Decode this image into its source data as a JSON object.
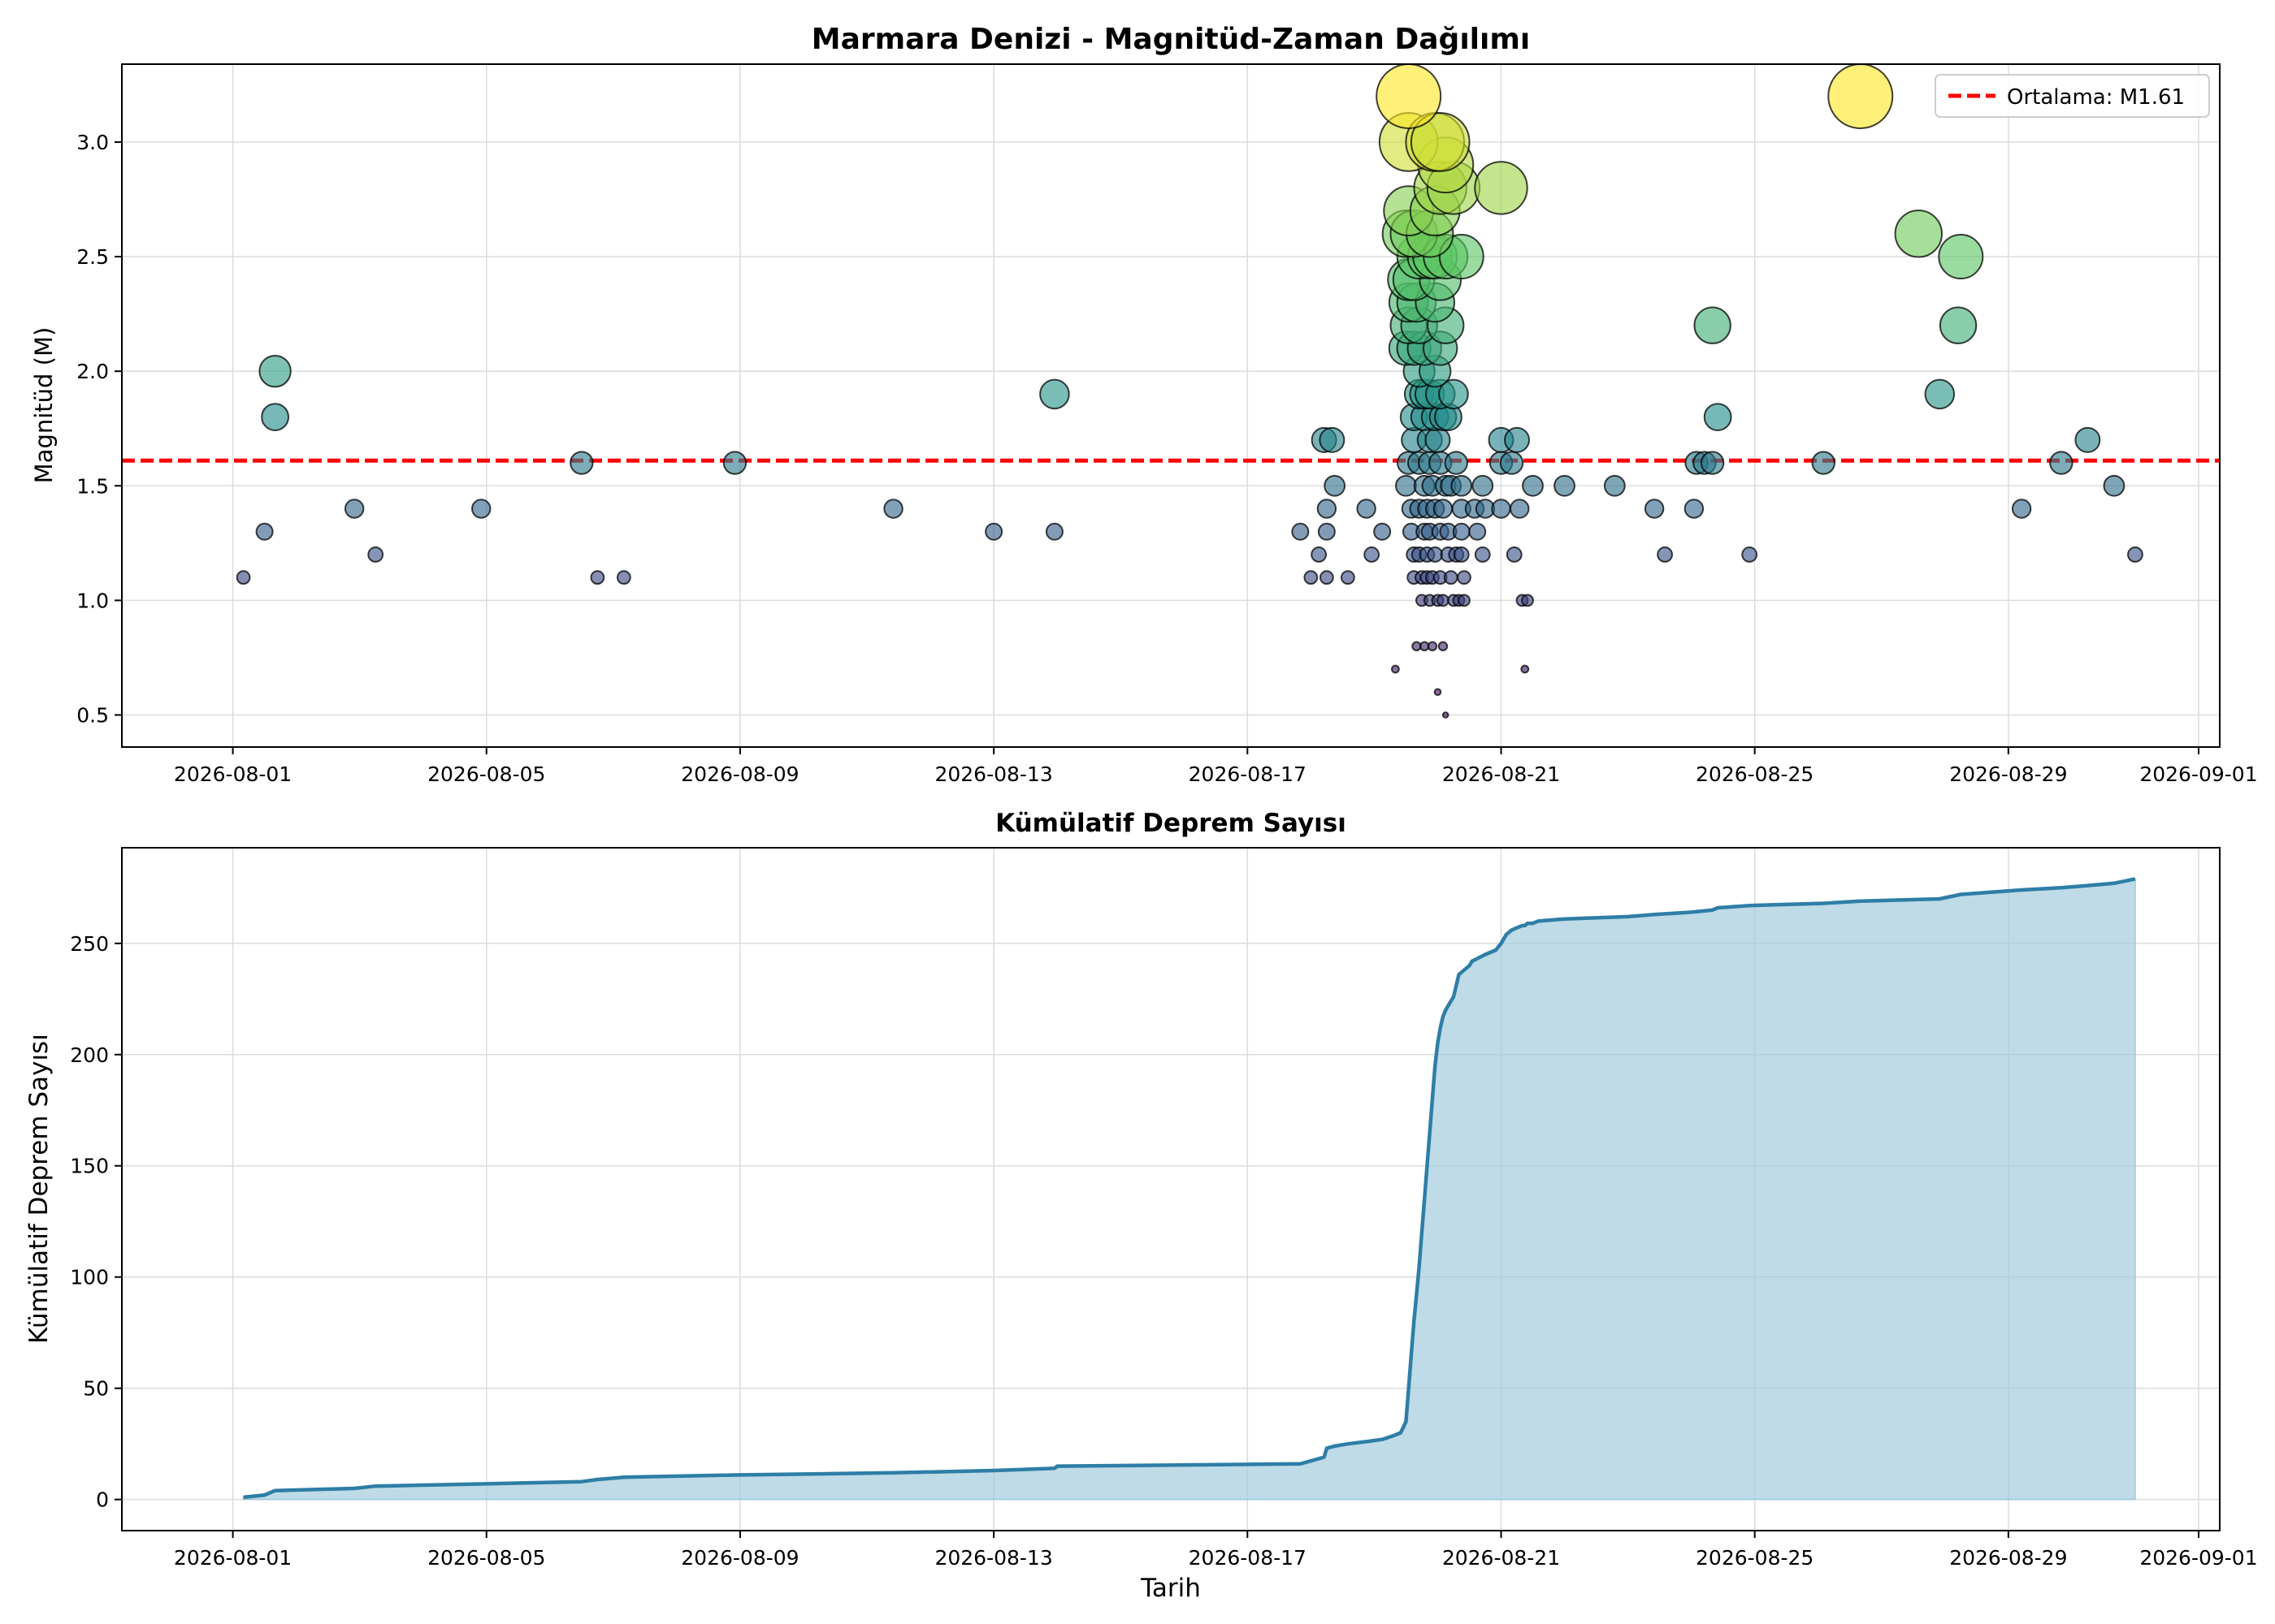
{
  "chart_data": [
    {
      "type": "scatter",
      "title": "Marmara Denizi - Magnitüd-Zaman Dağılımı",
      "xlabel": "",
      "ylabel": "Magnitüd (M)",
      "x_type": "date",
      "xlim": [
        "2026-07-30T06:00",
        "2026-09-01T08:00"
      ],
      "ylim": [
        0.36,
        3.34
      ],
      "x_ticks": [
        "2026-08-01",
        "2026-08-05",
        "2026-08-09",
        "2026-08-13",
        "2026-08-17",
        "2026-08-21",
        "2026-08-25",
        "2026-08-29",
        "2026-09-01"
      ],
      "y_ticks": [
        "0.5",
        "1.0",
        "1.5",
        "2.0",
        "2.5",
        "3.0"
      ],
      "grid": true,
      "colormap": "viridis",
      "color_range": [
        0.5,
        3.2
      ],
      "marker_size_by": "magnitude",
      "mean_line": {
        "value": 1.61,
        "color": "#ff0000",
        "style": "dashed"
      },
      "legend": {
        "position": "top-right",
        "entries": [
          {
            "label": "Ortalama: M1.61",
            "color": "#ff0000",
            "style": "dashed"
          }
        ]
      },
      "points": [
        {
          "x": "2026-08-01T04:00",
          "y": 1.1
        },
        {
          "x": "2026-08-01T12:00",
          "y": 1.3
        },
        {
          "x": "2026-08-01T16:00",
          "y": 2.0
        },
        {
          "x": "2026-08-01T16:00",
          "y": 1.8
        },
        {
          "x": "2026-08-02T22:00",
          "y": 1.4
        },
        {
          "x": "2026-08-03T06:00",
          "y": 1.2
        },
        {
          "x": "2026-08-04T22:00",
          "y": 1.4
        },
        {
          "x": "2026-08-06T12:00",
          "y": 1.6
        },
        {
          "x": "2026-08-06T18:00",
          "y": 1.1
        },
        {
          "x": "2026-08-07T04:00",
          "y": 1.1
        },
        {
          "x": "2026-08-08T22:00",
          "y": 1.6
        },
        {
          "x": "2026-08-11T10:00",
          "y": 1.4
        },
        {
          "x": "2026-08-13T00:00",
          "y": 1.3
        },
        {
          "x": "2026-08-13T23:00",
          "y": 1.9
        },
        {
          "x": "2026-08-13T23:00",
          "y": 1.3
        },
        {
          "x": "2026-08-17T20:00",
          "y": 1.3
        },
        {
          "x": "2026-08-18T00:00",
          "y": 1.1
        },
        {
          "x": "2026-08-18T03:00",
          "y": 1.2
        },
        {
          "x": "2026-08-18T05:00",
          "y": 1.7
        },
        {
          "x": "2026-08-18T06:00",
          "y": 1.4
        },
        {
          "x": "2026-08-18T06:00",
          "y": 1.3
        },
        {
          "x": "2026-08-18T06:00",
          "y": 1.1
        },
        {
          "x": "2026-08-18T08:00",
          "y": 1.7
        },
        {
          "x": "2026-08-18T09:00",
          "y": 1.5
        },
        {
          "x": "2026-08-18T14:00",
          "y": 1.1
        },
        {
          "x": "2026-08-18T21:00",
          "y": 1.4
        },
        {
          "x": "2026-08-18T23:00",
          "y": 1.2
        },
        {
          "x": "2026-08-19T03:00",
          "y": 1.3
        },
        {
          "x": "2026-08-19T08:00",
          "y": 0.7
        },
        {
          "x": "2026-08-19T13:00",
          "y": 3.2
        },
        {
          "x": "2026-08-19T13:00",
          "y": 3.0
        },
        {
          "x": "2026-08-19T13:00",
          "y": 2.7
        },
        {
          "x": "2026-08-19T12:00",
          "y": 2.6
        },
        {
          "x": "2026-08-19T13:00",
          "y": 2.4
        },
        {
          "x": "2026-08-19T12:00",
          "y": 2.1
        },
        {
          "x": "2026-08-19T13:00",
          "y": 2.2
        },
        {
          "x": "2026-08-19T13:00",
          "y": 2.3
        },
        {
          "x": "2026-08-19T13:00",
          "y": 1.6
        },
        {
          "x": "2026-08-19T12:00",
          "y": 1.5
        },
        {
          "x": "2026-08-19T14:00",
          "y": 1.4
        },
        {
          "x": "2026-08-19T14:00",
          "y": 1.3
        },
        {
          "x": "2026-08-19T15:00",
          "y": 2.6
        },
        {
          "x": "2026-08-19T15:00",
          "y": 2.4
        },
        {
          "x": "2026-08-19T16:00",
          "y": 2.3
        },
        {
          "x": "2026-08-19T15:00",
          "y": 2.1
        },
        {
          "x": "2026-08-19T15:00",
          "y": 1.8
        },
        {
          "x": "2026-08-19T15:00",
          "y": 1.7
        },
        {
          "x": "2026-08-19T15:00",
          "y": 1.2
        },
        {
          "x": "2026-08-19T15:00",
          "y": 1.1
        },
        {
          "x": "2026-08-19T16:00",
          "y": 0.8
        },
        {
          "x": "2026-08-19T17:00",
          "y": 2.5
        },
        {
          "x": "2026-08-19T17:00",
          "y": 2.2
        },
        {
          "x": "2026-08-19T17:00",
          "y": 2.0
        },
        {
          "x": "2026-08-19T17:00",
          "y": 1.9
        },
        {
          "x": "2026-08-19T17:00",
          "y": 1.6
        },
        {
          "x": "2026-08-19T17:00",
          "y": 1.4
        },
        {
          "x": "2026-08-19T17:00",
          "y": 1.2
        },
        {
          "x": "2026-08-19T18:00",
          "y": 1.0
        },
        {
          "x": "2026-08-19T18:00",
          "y": 1.1
        },
        {
          "x": "2026-08-19T19:00",
          "y": 2.1
        },
        {
          "x": "2026-08-19T19:00",
          "y": 1.9
        },
        {
          "x": "2026-08-19T19:00",
          "y": 1.8
        },
        {
          "x": "2026-08-19T19:00",
          "y": 1.5
        },
        {
          "x": "2026-08-19T19:00",
          "y": 1.3
        },
        {
          "x": "2026-08-19T19:00",
          "y": 0.8
        },
        {
          "x": "2026-08-19T20:00",
          "y": 1.2
        },
        {
          "x": "2026-08-19T20:00",
          "y": 1.4
        },
        {
          "x": "2026-08-19T20:00",
          "y": 1.1
        },
        {
          "x": "2026-08-19T21:00",
          "y": 2.6
        },
        {
          "x": "2026-08-19T21:00",
          "y": 2.5
        },
        {
          "x": "2026-08-19T21:00",
          "y": 1.9
        },
        {
          "x": "2026-08-19T21:00",
          "y": 1.7
        },
        {
          "x": "2026-08-19T21:00",
          "y": 1.6
        },
        {
          "x": "2026-08-19T21:00",
          "y": 1.3
        },
        {
          "x": "2026-08-19T21:00",
          "y": 1.0
        },
        {
          "x": "2026-08-19T22:00",
          "y": 0.8
        },
        {
          "x": "2026-08-19T22:00",
          "y": 1.1
        },
        {
          "x": "2026-08-19T22:00",
          "y": 1.5
        },
        {
          "x": "2026-08-19T23:00",
          "y": 3.0
        },
        {
          "x": "2026-08-19T23:00",
          "y": 2.7
        },
        {
          "x": "2026-08-19T23:00",
          "y": 2.5
        },
        {
          "x": "2026-08-19T23:00",
          "y": 2.3
        },
        {
          "x": "2026-08-19T23:00",
          "y": 2.0
        },
        {
          "x": "2026-08-19T23:00",
          "y": 1.8
        },
        {
          "x": "2026-08-19T23:00",
          "y": 1.4
        },
        {
          "x": "2026-08-19T23:00",
          "y": 1.2
        },
        {
          "x": "2026-08-20T00:00",
          "y": 0.6
        },
        {
          "x": "2026-08-20T00:00",
          "y": 1.0
        },
        {
          "x": "2026-08-20T00:00",
          "y": 1.7
        },
        {
          "x": "2026-08-20T01:00",
          "y": 3.0
        },
        {
          "x": "2026-08-20T01:00",
          "y": 2.8
        },
        {
          "x": "2026-08-20T01:00",
          "y": 2.4
        },
        {
          "x": "2026-08-20T01:00",
          "y": 2.1
        },
        {
          "x": "2026-08-20T01:00",
          "y": 1.9
        },
        {
          "x": "2026-08-20T01:00",
          "y": 1.6
        },
        {
          "x": "2026-08-20T01:00",
          "y": 1.3
        },
        {
          "x": "2026-08-20T01:00",
          "y": 1.1
        },
        {
          "x": "2026-08-20T02:00",
          "y": 0.8
        },
        {
          "x": "2026-08-20T02:00",
          "y": 1.0
        },
        {
          "x": "2026-08-20T02:00",
          "y": 1.4
        },
        {
          "x": "2026-08-20T02:00",
          "y": 1.8
        },
        {
          "x": "2026-08-20T03:00",
          "y": 2.9
        },
        {
          "x": "2026-08-20T03:00",
          "y": 2.5
        },
        {
          "x": "2026-08-20T03:00",
          "y": 2.2
        },
        {
          "x": "2026-08-20T03:00",
          "y": 1.5
        },
        {
          "x": "2026-08-20T03:00",
          "y": 0.5
        },
        {
          "x": "2026-08-20T04:00",
          "y": 1.8
        },
        {
          "x": "2026-08-20T04:00",
          "y": 1.3
        },
        {
          "x": "2026-08-20T04:00",
          "y": 1.2
        },
        {
          "x": "2026-08-20T05:00",
          "y": 1.1
        },
        {
          "x": "2026-08-20T05:00",
          "y": 1.5
        },
        {
          "x": "2026-08-20T06:00",
          "y": 2.8
        },
        {
          "x": "2026-08-20T06:00",
          "y": 1.9
        },
        {
          "x": "2026-08-20T06:00",
          "y": 1.0
        },
        {
          "x": "2026-08-20T07:00",
          "y": 1.6
        },
        {
          "x": "2026-08-20T07:00",
          "y": 1.2
        },
        {
          "x": "2026-08-20T08:00",
          "y": 1.0
        },
        {
          "x": "2026-08-20T09:00",
          "y": 2.5
        },
        {
          "x": "2026-08-20T09:00",
          "y": 1.5
        },
        {
          "x": "2026-08-20T09:00",
          "y": 1.4
        },
        {
          "x": "2026-08-20T09:00",
          "y": 1.3
        },
        {
          "x": "2026-08-20T09:00",
          "y": 1.2
        },
        {
          "x": "2026-08-20T10:00",
          "y": 1.0
        },
        {
          "x": "2026-08-20T10:00",
          "y": 1.1
        },
        {
          "x": "2026-08-20T14:00",
          "y": 1.4
        },
        {
          "x": "2026-08-20T15:00",
          "y": 1.3
        },
        {
          "x": "2026-08-20T17:00",
          "y": 1.5
        },
        {
          "x": "2026-08-20T17:00",
          "y": 1.2
        },
        {
          "x": "2026-08-20T18:00",
          "y": 1.4
        },
        {
          "x": "2026-08-21T00:00",
          "y": 2.8
        },
        {
          "x": "2026-08-21T00:00",
          "y": 1.7
        },
        {
          "x": "2026-08-21T00:00",
          "y": 1.6
        },
        {
          "x": "2026-08-21T00:00",
          "y": 1.4
        },
        {
          "x": "2026-08-21T04:00",
          "y": 1.6
        },
        {
          "x": "2026-08-21T05:00",
          "y": 1.2
        },
        {
          "x": "2026-08-21T06:00",
          "y": 1.7
        },
        {
          "x": "2026-08-21T07:00",
          "y": 1.4
        },
        {
          "x": "2026-08-21T08:00",
          "y": 1.0
        },
        {
          "x": "2026-08-21T09:00",
          "y": 0.7
        },
        {
          "x": "2026-08-21T10:00",
          "y": 1.0
        },
        {
          "x": "2026-08-21T12:00",
          "y": 1.5
        },
        {
          "x": "2026-08-22T00:00",
          "y": 1.5
        },
        {
          "x": "2026-08-22T19:00",
          "y": 1.5
        },
        {
          "x": "2026-08-23T10:00",
          "y": 1.4
        },
        {
          "x": "2026-08-23T14:00",
          "y": 1.2
        },
        {
          "x": "2026-08-24T01:00",
          "y": 1.4
        },
        {
          "x": "2026-08-24T02:00",
          "y": 1.6
        },
        {
          "x": "2026-08-24T05:00",
          "y": 1.6
        },
        {
          "x": "2026-08-24T08:00",
          "y": 2.2
        },
        {
          "x": "2026-08-24T08:00",
          "y": 1.6
        },
        {
          "x": "2026-08-24T10:00",
          "y": 1.8
        },
        {
          "x": "2026-08-24T22:00",
          "y": 1.2
        },
        {
          "x": "2026-08-26T02:00",
          "y": 1.6
        },
        {
          "x": "2026-08-26T16:00",
          "y": 3.2
        },
        {
          "x": "2026-08-27T14:00",
          "y": 2.6
        },
        {
          "x": "2026-08-27T22:00",
          "y": 1.9
        },
        {
          "x": "2026-08-28T05:00",
          "y": 2.2
        },
        {
          "x": "2026-08-28T06:00",
          "y": 2.5
        },
        {
          "x": "2026-08-29T05:00",
          "y": 1.4
        },
        {
          "x": "2026-08-29T20:00",
          "y": 1.6
        },
        {
          "x": "2026-08-30T06:00",
          "y": 1.7
        },
        {
          "x": "2026-08-30T16:00",
          "y": 1.5
        },
        {
          "x": "2026-08-31T00:00",
          "y": 1.2
        }
      ]
    },
    {
      "type": "area",
      "title": "Kümülatif Deprem Sayısı",
      "xlabel": "Tarih",
      "ylabel": "Kümülatif Deprem Sayısı",
      "x_type": "date",
      "xlim": [
        "2026-07-30T06:00",
        "2026-09-01T08:00"
      ],
      "ylim": [
        -14,
        293
      ],
      "x_ticks": [
        "2026-08-01",
        "2026-08-05",
        "2026-08-09",
        "2026-08-13",
        "2026-08-17",
        "2026-08-21",
        "2026-08-25",
        "2026-08-29",
        "2026-09-01"
      ],
      "y_ticks": [
        "0",
        "50",
        "100",
        "150",
        "200",
        "250"
      ],
      "grid": true,
      "line_color": "#2e7ea6",
      "fill_color": "#9cc7da",
      "series": [
        {
          "x": [
            "2026-08-01T04:00",
            "2026-08-01T12:00",
            "2026-08-01T16:00",
            "2026-08-02T22:00",
            "2026-08-03T06:00",
            "2026-08-04T22:00",
            "2026-08-06T12:00",
            "2026-08-06T18:00",
            "2026-08-07T04:00",
            "2026-08-08T22:00",
            "2026-08-11T10:00",
            "2026-08-13T00:00",
            "2026-08-13T23:00",
            "2026-08-14T00:00",
            "2026-08-17T20:00",
            "2026-08-18T05:00",
            "2026-08-18T06:00",
            "2026-08-18T09:00",
            "2026-08-18T14:00",
            "2026-08-18T21:00",
            "2026-08-19T03:00",
            "2026-08-19T08:00",
            "2026-08-19T10:00",
            "2026-08-19T12:00",
            "2026-08-19T13:00",
            "2026-08-19T14:00",
            "2026-08-19T15:00",
            "2026-08-19T16:00",
            "2026-08-19T17:00",
            "2026-08-19T18:00",
            "2026-08-19T19:00",
            "2026-08-19T20:00",
            "2026-08-19T21:00",
            "2026-08-19T22:00",
            "2026-08-19T23:00",
            "2026-08-20T00:00",
            "2026-08-20T01:00",
            "2026-08-20T02:00",
            "2026-08-20T03:00",
            "2026-08-20T04:00",
            "2026-08-20T05:00",
            "2026-08-20T06:00",
            "2026-08-20T08:00",
            "2026-08-20T10:00",
            "2026-08-20T12:00",
            "2026-08-20T13:00",
            "2026-08-20T18:00",
            "2026-08-20T22:00",
            "2026-08-21T00:00",
            "2026-08-21T02:00",
            "2026-08-21T04:00",
            "2026-08-21T06:00",
            "2026-08-21T08:00",
            "2026-08-21T09:00",
            "2026-08-21T10:00",
            "2026-08-21T12:00",
            "2026-08-21T14:00",
            "2026-08-22T00:00",
            "2026-08-23T00:00",
            "2026-08-23T10:00",
            "2026-08-24T00:00",
            "2026-08-24T08:00",
            "2026-08-24T10:00",
            "2026-08-24T22:00",
            "2026-08-26T02:00",
            "2026-08-26T16:00",
            "2026-08-27T22:00",
            "2026-08-28T06:00",
            "2026-08-29T05:00",
            "2026-08-29T20:00",
            "2026-08-30T06:00",
            "2026-08-30T16:00",
            "2026-08-31T00:00"
          ],
          "y": [
            1,
            2,
            4,
            5,
            6,
            7,
            8,
            9,
            10,
            11,
            12,
            13,
            14,
            15,
            16,
            19,
            23,
            24,
            25,
            26,
            27,
            29,
            30,
            35,
            50,
            65,
            80,
            92,
            105,
            120,
            135,
            150,
            165,
            180,
            195,
            205,
            212,
            217,
            220,
            222,
            224,
            226,
            236,
            238,
            240,
            242,
            245,
            247,
            250,
            254,
            256,
            257,
            258,
            258,
            259,
            259,
            260,
            261,
            262,
            263,
            264,
            265,
            266,
            267,
            268,
            269,
            270,
            272,
            274,
            275,
            276,
            277,
            279
          ]
        }
      ]
    }
  ]
}
